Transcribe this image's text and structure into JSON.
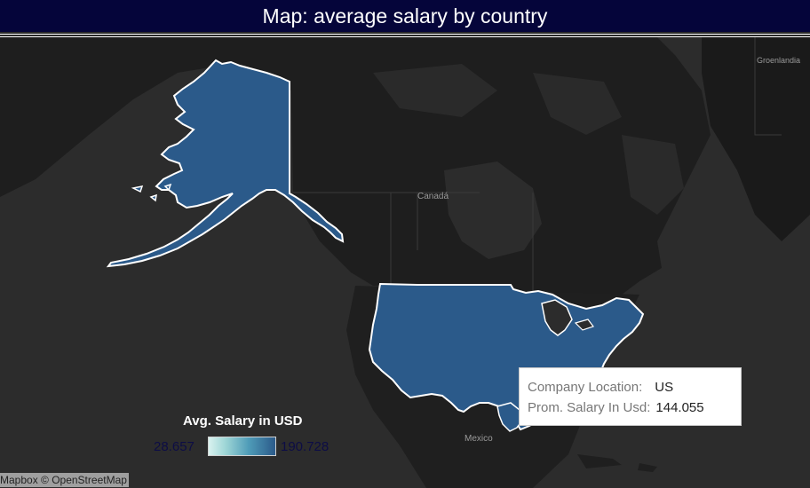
{
  "header": {
    "title": "Map: average salary by country"
  },
  "map": {
    "place_labels": {
      "canada": "Canadá",
      "mexico": "Mexico",
      "greenland": "Groenlandia"
    },
    "attribution": "Mapbox © OpenStreetMap",
    "highlighted": "US",
    "fill_color": "#2b5a8a",
    "land_color": "#1e1e1e",
    "water_color": "#2c2c2c"
  },
  "tooltip": {
    "key_location": "Company Location:",
    "value_location": "US",
    "key_salary": "Prom. Salary In Usd:",
    "value_salary": "144.055"
  },
  "legend": {
    "title": "Avg. Salary in USD",
    "min_label": "28.657",
    "max_label": "190.728"
  }
}
